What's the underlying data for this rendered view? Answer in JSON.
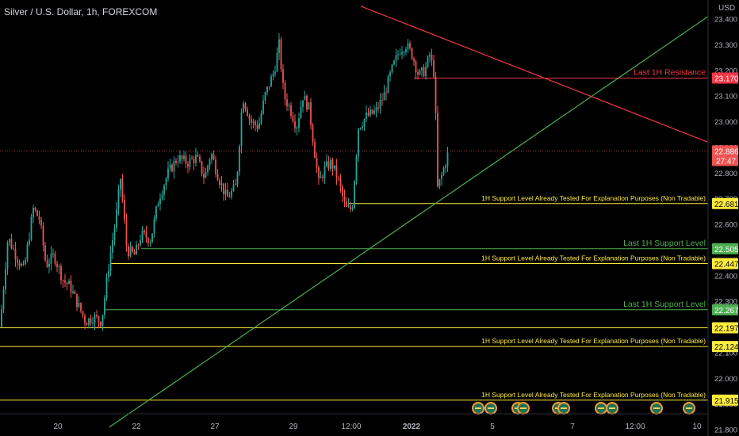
{
  "header": {
    "symbol_title": "Silver / U.S. Dollar, 1h, FOREXCOM",
    "currency": "USD"
  },
  "colors": {
    "background": "#000000",
    "up": "#26a69a",
    "down": "#ef5350",
    "support_green": "#4caf50",
    "support_yellow": "#ffeb3b",
    "resistance_red": "#f23645",
    "axis_text": "#b2b5be"
  },
  "chart_data": {
    "type": "candlestick",
    "title": "Silver / U.S. Dollar, 1h, FOREXCOM",
    "ylabel": "USD",
    "ylim": [
      21.8,
      23.42
    ],
    "grid": false,
    "x_ticks": [
      "20",
      "22",
      "27",
      "29",
      "12:00",
      "2022",
      "5",
      "7",
      "12:00",
      "10"
    ],
    "y_ticks": [
      "23.400",
      "23.300",
      "23.200",
      "23.100",
      "23.000",
      "22.900",
      "22.800",
      "22.700",
      "22.600",
      "22.500",
      "22.400",
      "22.300",
      "22.200",
      "22.100",
      "22.000",
      "21.900",
      "21.800"
    ],
    "price_path": [
      [
        0,
        22.2
      ],
      [
        10,
        22.55
      ],
      [
        20,
        22.48
      ],
      [
        30,
        22.42
      ],
      [
        42,
        22.66
      ],
      [
        50,
        22.62
      ],
      [
        58,
        22.44
      ],
      [
        68,
        22.48
      ],
      [
        80,
        22.38
      ],
      [
        88,
        22.36
      ],
      [
        98,
        22.29
      ],
      [
        108,
        22.22
      ],
      [
        118,
        22.24
      ],
      [
        128,
        22.22
      ],
      [
        138,
        22.46
      ],
      [
        146,
        22.62
      ],
      [
        152,
        22.78
      ],
      [
        160,
        22.5
      ],
      [
        170,
        22.48
      ],
      [
        178,
        22.56
      ],
      [
        190,
        22.54
      ],
      [
        200,
        22.7
      ],
      [
        212,
        22.8
      ],
      [
        224,
        22.86
      ],
      [
        236,
        22.84
      ],
      [
        248,
        22.86
      ],
      [
        258,
        22.78
      ],
      [
        266,
        22.88
      ],
      [
        276,
        22.78
      ],
      [
        286,
        22.7
      ],
      [
        298,
        22.75
      ],
      [
        306,
        23.1
      ],
      [
        316,
        23.0
      ],
      [
        326,
        22.98
      ],
      [
        334,
        23.1
      ],
      [
        346,
        23.2
      ],
      [
        352,
        23.3
      ],
      [
        358,
        23.1
      ],
      [
        366,
        23.05
      ],
      [
        374,
        22.98
      ],
      [
        382,
        23.1
      ],
      [
        390,
        23.05
      ],
      [
        396,
        22.9
      ],
      [
        402,
        22.76
      ],
      [
        410,
        22.82
      ],
      [
        418,
        22.84
      ],
      [
        426,
        22.78
      ],
      [
        436,
        22.66
      ],
      [
        444,
        22.66
      ],
      [
        452,
        22.98
      ],
      [
        462,
        23.02
      ],
      [
        474,
        23.04
      ],
      [
        484,
        23.1
      ],
      [
        494,
        23.2
      ],
      [
        504,
        23.28
      ],
      [
        512,
        23.3
      ],
      [
        520,
        23.26
      ],
      [
        528,
        23.18
      ],
      [
        536,
        23.2
      ],
      [
        542,
        23.26
      ],
      [
        548,
        23.18
      ],
      [
        552,
        22.74
      ],
      [
        558,
        22.8
      ],
      [
        566,
        22.886
      ]
    ],
    "current_price": "22.886",
    "countdown": "27:47",
    "levels": [
      {
        "price": 23.17,
        "label": "Last 1H Resistance",
        "tag": "23.170",
        "kind": "resistance",
        "start": 522
      },
      {
        "price": 22.681,
        "label": "1H Support Level Already Tested For Explanation Purposes (Non Tradable)",
        "tag": "22.681",
        "kind": "tested",
        "start": 440
      },
      {
        "price": 22.505,
        "label": "Last 1H Support Level",
        "tag": "22.505",
        "kind": "support",
        "start": 178
      },
      {
        "price": 22.447,
        "label": "1H Support Level Already Tested For Explanation Purposes (Non Tradable)",
        "tag": "22.447",
        "kind": "tested",
        "start": 140
      },
      {
        "price": 22.267,
        "label": "Last 1H Support Level",
        "tag": "22.267",
        "kind": "support",
        "start": 132
      },
      {
        "price": 22.197,
        "label": "",
        "tag": "22.197",
        "kind": "tested",
        "start": 0
      },
      {
        "price": 22.124,
        "label": "1H Support Level Already Tested For Explanation Purposes (Non Tradable)",
        "tag": "22.124",
        "kind": "tested",
        "start": 0
      },
      {
        "price": 21.915,
        "label": "1H Support Level Already Tested For Explanation Purposes (Non Tradable)",
        "tag": "21.915",
        "kind": "tested",
        "start": 0
      }
    ],
    "trendlines": [
      {
        "kind": "support",
        "from": [
          138,
          21.81
        ],
        "to": [
          893,
          23.41
        ]
      },
      {
        "kind": "resistance",
        "from": [
          455,
          23.45
        ],
        "to": [
          893,
          22.92
        ]
      }
    ],
    "event_icons": [
      {
        "group": 1,
        "x": 603
      },
      {
        "group": 1,
        "x": 619
      },
      {
        "group": 2,
        "x": 653
      },
      {
        "group": 2,
        "x": 660
      },
      {
        "group": 3,
        "x": 704
      },
      {
        "group": 3,
        "x": 711
      },
      {
        "group": 4,
        "x": 758
      },
      {
        "group": 4,
        "x": 772
      },
      {
        "group": 5,
        "x": 828
      },
      {
        "group": 5,
        "x": 869
      }
    ]
  }
}
